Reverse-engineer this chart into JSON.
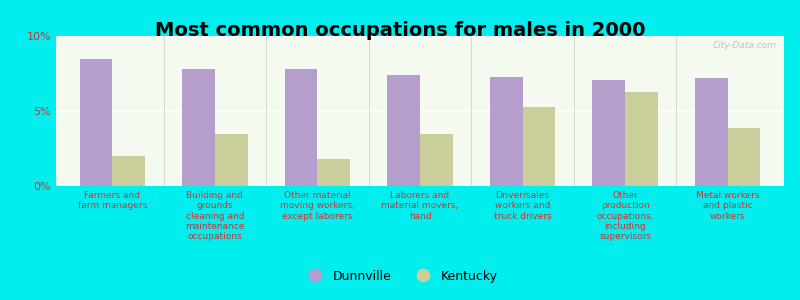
{
  "title": "Most common occupations for males in 2000",
  "categories": [
    "Farmers and\nfarm managers",
    "Building and\ngrounds\ncleaning and\nmaintenance\noccupations",
    "Other material\nmoving workers,\nexcept laborers",
    "Laborers and\nmaterial movers,\nhand",
    "Driver/sales\nworkers and\ntruck drivers",
    "Other\nproduction\noccupations,\nincluding\nsupervisors",
    "Metal workers\nand plastic\nworkers"
  ],
  "dunnville": [
    8.5,
    7.8,
    7.8,
    7.4,
    7.3,
    7.1,
    7.2
  ],
  "kentucky": [
    2.0,
    3.5,
    1.8,
    3.5,
    5.3,
    6.3,
    3.9
  ],
  "dunnville_color": "#b59dcc",
  "kentucky_color": "#c9ce9a",
  "background_color": "#00eeee",
  "plot_bg_top": "#f5faf0",
  "plot_bg_bottom": "#e8f0dc",
  "ylim": [
    0,
    10
  ],
  "yticks": [
    0,
    5,
    10
  ],
  "ytick_labels": [
    "0%",
    "5%",
    "10%"
  ],
  "watermark": "City-Data.com",
  "legend_dunnville": "Dunnville",
  "legend_kentucky": "Kentucky",
  "bar_width": 0.32,
  "tick_color": "#cc3333",
  "title_fontsize": 14,
  "tick_fontsize": 6.5,
  "ytick_fontsize": 8
}
